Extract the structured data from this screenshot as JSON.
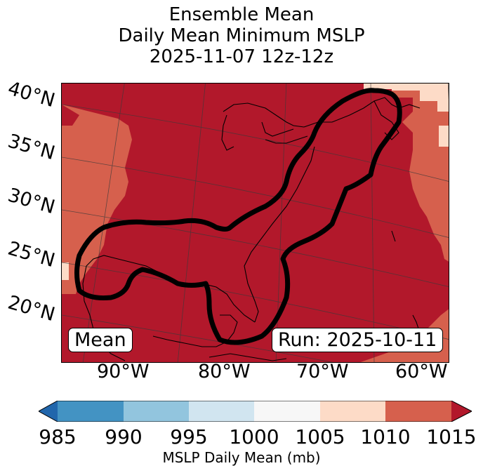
{
  "title": {
    "line1": "Ensemble Mean",
    "line2": "Daily Mean Minimum MSLP",
    "line3": "2025-11-07 12z-12z"
  },
  "map": {
    "lat_labels": [
      "40°N",
      "35°N",
      "30°N",
      "25°N",
      "20°N"
    ],
    "lon_labels": [
      "90°W",
      "80°W",
      "70°W",
      "60°W"
    ],
    "mean_badge": "Mean",
    "run_badge": "Run: 2025-10-11",
    "contour_value_mb": 1010
  },
  "colorbar": {
    "ticks": [
      "985",
      "990",
      "995",
      "1000",
      "1005",
      "1010",
      "1015"
    ],
    "label": "MSLP Daily Mean (mb)",
    "colors": {
      "under": "#2166ac",
      "c985_990": "#4393c3",
      "c990_995": "#92c5de",
      "c995_1000": "#d1e5f0",
      "c1000_1005": "#f7f7f7",
      "c1005_1010": "#fddbc7",
      "c1010_1015": "#d6604d",
      "over": "#b2182b"
    }
  }
}
